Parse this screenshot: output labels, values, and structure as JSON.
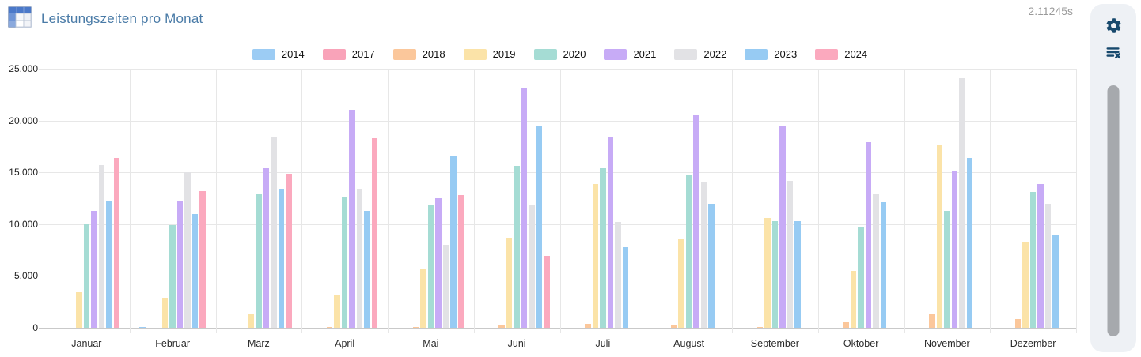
{
  "header": {
    "title": "Leistungszeiten pro Monat",
    "timing": "2.11245s",
    "title_icon": "pivot-table-icon"
  },
  "side_panel": {
    "icons": [
      "settings-gear-icon",
      "clear-legend-list-x-icon",
      "vertical-scrollbar-thumb"
    ]
  },
  "colors": {
    "title": "#4a7ba7",
    "timing": "#9a9a9a",
    "icon": "#17496d",
    "panel_bg": "#eef1f5",
    "scroll_thumb": "#a6a9ad",
    "grid": "#e7e7e7",
    "axis": "#c9c9c9",
    "label": "#2b2b2b"
  },
  "chart_data": {
    "type": "bar",
    "title": "Leistungszeiten pro Monat",
    "legend_position": "top",
    "grid": true,
    "ylim": [
      0,
      25000
    ],
    "yticks": [
      {
        "label": "25.000",
        "value": 25000
      },
      {
        "label": "20.000",
        "value": 20000
      },
      {
        "label": "15.000",
        "value": 15000
      },
      {
        "label": "10.000",
        "value": 10000
      },
      {
        "label": "5.000",
        "value": 5000
      },
      {
        "label": "0",
        "value": 0
      }
    ],
    "categories": [
      "Januar",
      "Februar",
      "März",
      "April",
      "Mai",
      "Juni",
      "Juli",
      "August",
      "September",
      "Oktober",
      "November",
      "Dezember"
    ],
    "series": [
      {
        "name": "2014",
        "color": "#9cccf4",
        "values": [
          null,
          100,
          null,
          null,
          null,
          null,
          null,
          null,
          null,
          null,
          null,
          null
        ]
      },
      {
        "name": "2017",
        "color": "#f9a3b9",
        "values": [
          null,
          null,
          null,
          null,
          null,
          null,
          null,
          null,
          null,
          null,
          null,
          null
        ]
      },
      {
        "name": "2018",
        "color": "#fbc79b",
        "values": [
          null,
          null,
          null,
          100,
          70,
          200,
          350,
          250,
          80,
          500,
          1300,
          850
        ]
      },
      {
        "name": "2019",
        "color": "#fbe3a8",
        "values": [
          3400,
          2900,
          1400,
          3100,
          5700,
          8700,
          13900,
          8600,
          10600,
          5500,
          17700,
          8300
        ]
      },
      {
        "name": "2020",
        "color": "#a5dcd4",
        "values": [
          10000,
          9900,
          12900,
          12600,
          11800,
          15600,
          15400,
          14700,
          10300,
          9700,
          11300,
          13100
        ]
      },
      {
        "name": "2021",
        "color": "#c7abf6",
        "values": [
          11300,
          12200,
          15400,
          21000,
          12500,
          23200,
          18400,
          20500,
          19400,
          17900,
          15200,
          13900
        ]
      },
      {
        "name": "2022",
        "color": "#e2e2e5",
        "values": [
          15700,
          15000,
          18400,
          13400,
          8000,
          11900,
          10200,
          14000,
          14200,
          12900,
          24100,
          12000
        ]
      },
      {
        "name": "2023",
        "color": "#97cbf3",
        "values": [
          12200,
          11000,
          13400,
          11300,
          16600,
          19500,
          7800,
          12000,
          10300,
          12100,
          16400,
          8900
        ]
      },
      {
        "name": "2024",
        "color": "#fba9be",
        "values": [
          16400,
          13200,
          14900,
          18300,
          12800,
          6900,
          null,
          null,
          null,
          null,
          null,
          null
        ]
      }
    ]
  }
}
